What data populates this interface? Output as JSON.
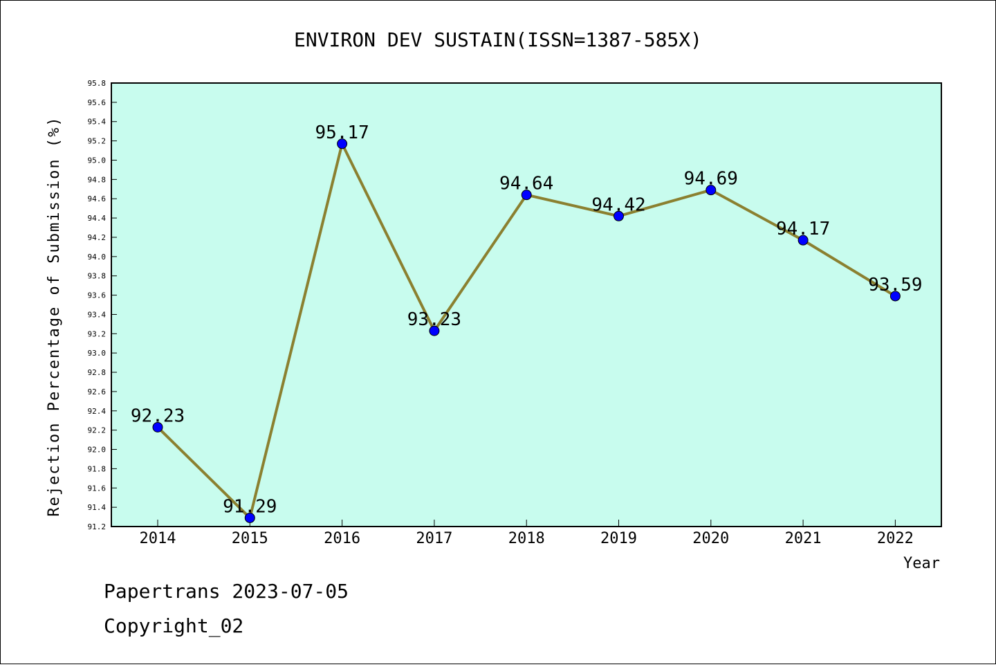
{
  "chart_data": {
    "type": "line",
    "title": "ENVIRON DEV SUSTAIN(ISSN=1387-585X)",
    "xlabel": "Year",
    "ylabel": "Rejection Percentage of Submission (%)",
    "categories": [
      "2014",
      "2015",
      "2016",
      "2017",
      "2018",
      "2019",
      "2020",
      "2021",
      "2022"
    ],
    "series": [
      {
        "values": [
          92.23,
          91.29,
          95.17,
          93.23,
          94.64,
          94.42,
          94.69,
          94.17,
          93.59
        ]
      }
    ],
    "data_labels": [
      "92.23",
      "91.29",
      "95.17",
      "93.23",
      "94.64",
      "94.42",
      "94.69",
      "94.17",
      "93.59"
    ],
    "ylim": [
      91.2,
      95.8
    ],
    "yticks": [
      "91.2",
      "91.4",
      "91.6",
      "91.8",
      "92.0",
      "92.2",
      "92.4",
      "92.6",
      "92.8",
      "93.0",
      "93.2",
      "93.4",
      "93.6",
      "93.8",
      "94.0",
      "94.2",
      "94.4",
      "94.6",
      "94.8",
      "95.0",
      "95.2",
      "95.4",
      "95.6",
      "95.8"
    ],
    "grid": false,
    "legend": "none"
  },
  "colors": {
    "plot_background": "#c8fcee",
    "line": "#8b8030",
    "marker": "#0000ff"
  },
  "footer": {
    "line1": "Papertrans 2023-07-05",
    "line2": "Copyright_02"
  }
}
